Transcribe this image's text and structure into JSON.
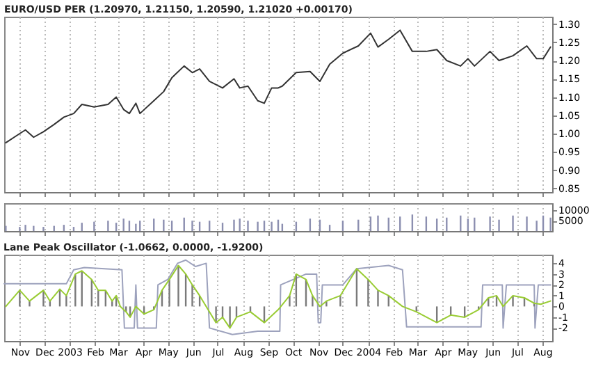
{
  "chart_data": [
    {
      "type": "line",
      "title": "EURO/USD PER (1.20970, 1.21150, 1.20590, 1.21020 +0.00170)",
      "x": [
        "2002-10-15",
        "2002-11-01",
        "2002-11-08",
        "2002-11-18",
        "2002-11-30",
        "2002-12-13",
        "2002-12-25",
        "2003-01-06",
        "2003-01-16",
        "2003-01-31",
        "2003-02-17",
        "2003-02-27",
        "2003-03-08",
        "2003-03-15",
        "2003-03-23",
        "2003-03-28",
        "2003-04-14",
        "2003-04-26",
        "2003-05-06",
        "2003-05-21",
        "2003-05-31",
        "2003-06-09",
        "2003-06-21",
        "2003-07-07",
        "2003-07-21",
        "2003-07-28",
        "2003-08-07",
        "2003-08-19",
        "2003-08-27",
        "2003-09-05",
        "2003-09-13",
        "2003-09-18",
        "2003-10-05",
        "2003-10-22",
        "2003-11-03",
        "2003-11-15",
        "2003-12-01",
        "2003-12-20",
        "2004-01-04",
        "2004-01-13",
        "2004-01-26",
        "2004-02-09",
        "2004-02-24",
        "2004-03-12",
        "2004-03-25",
        "2004-04-06",
        "2004-04-23",
        "2004-05-02",
        "2004-05-10",
        "2004-05-29",
        "2004-06-09",
        "2004-06-26",
        "2004-07-13",
        "2004-07-25",
        "2004-08-02",
        "2004-08-11"
      ],
      "values": [
        0.975,
        1.0,
        1.01,
        0.99,
        1.005,
        1.025,
        1.045,
        1.055,
        1.08,
        1.073,
        1.08,
        1.1,
        1.066,
        1.055,
        1.083,
        1.055,
        1.09,
        1.115,
        1.153,
        1.185,
        1.167,
        1.177,
        1.143,
        1.125,
        1.15,
        1.125,
        1.13,
        1.09,
        1.083,
        1.125,
        1.125,
        1.13,
        1.167,
        1.17,
        1.143,
        1.19,
        1.22,
        1.24,
        1.275,
        1.237,
        1.258,
        1.283,
        1.225,
        1.225,
        1.23,
        1.2,
        1.185,
        1.205,
        1.185,
        1.225,
        1.2,
        1.213,
        1.24,
        1.205,
        1.205,
        1.237
      ],
      "color": "#333333",
      "xlim": [
        "2002-10-13",
        "2004-08-13"
      ],
      "xticks": [
        {
          "value": "2002-11-01",
          "label": null
        },
        {
          "value": "2002-12-01",
          "label": null
        },
        {
          "value": "2003-01-01",
          "label": null
        },
        {
          "value": "2003-02-01",
          "label": null
        },
        {
          "value": "2003-03-01",
          "label": null
        },
        {
          "value": "2003-04-01",
          "label": null
        },
        {
          "value": "2003-05-01",
          "label": null
        },
        {
          "value": "2003-06-01",
          "label": null
        },
        {
          "value": "2003-07-01",
          "label": null
        },
        {
          "value": "2003-08-01",
          "label": null
        },
        {
          "value": "2003-09-01",
          "label": null
        },
        {
          "value": "2003-10-01",
          "label": null
        },
        {
          "value": "2003-11-01",
          "label": null
        },
        {
          "value": "2003-12-01",
          "label": null
        },
        {
          "value": "2004-01-01",
          "label": null
        },
        {
          "value": "2004-02-01",
          "label": null
        },
        {
          "value": "2004-03-01",
          "label": null
        },
        {
          "value": "2004-04-01",
          "label": null
        },
        {
          "value": "2004-05-01",
          "label": null
        },
        {
          "value": "2004-06-01",
          "label": null
        },
        {
          "value": "2004-07-01",
          "label": null
        },
        {
          "value": "2004-08-01",
          "label": null
        }
      ],
      "ylim": [
        0.84,
        1.32
      ],
      "yticks": [
        {
          "value": 0.85,
          "label": "0.85"
        },
        {
          "value": 0.9,
          "label": "0.90"
        },
        {
          "value": 0.95,
          "label": "0.95"
        },
        {
          "value": 1.0,
          "label": "1.00"
        },
        {
          "value": 1.05,
          "label": "1.05"
        },
        {
          "value": 1.1,
          "label": "1.10"
        },
        {
          "value": 1.15,
          "label": "1.15"
        },
        {
          "value": 1.2,
          "label": "1.20"
        },
        {
          "value": 1.25,
          "label": "1.25"
        },
        {
          "value": 1.3,
          "label": "1.30"
        }
      ],
      "grid": "x",
      "tick_labels": "y"
    },
    {
      "type": "bar",
      "x": [
        "2002-10-15",
        "2002-11-01",
        "2002-11-08",
        "2002-11-18",
        "2002-11-30",
        "2002-12-13",
        "2002-12-25",
        "2003-01-06",
        "2003-01-16",
        "2003-01-31",
        "2003-02-17",
        "2003-02-27",
        "2003-03-08",
        "2003-03-15",
        "2003-03-23",
        "2003-03-28",
        "2003-04-14",
        "2003-04-26",
        "2003-05-06",
        "2003-05-21",
        "2003-05-31",
        "2003-06-09",
        "2003-06-21",
        "2003-07-07",
        "2003-07-21",
        "2003-07-28",
        "2003-08-07",
        "2003-08-19",
        "2003-08-27",
        "2003-09-05",
        "2003-09-13",
        "2003-09-18",
        "2003-10-05",
        "2003-10-22",
        "2003-11-03",
        "2003-11-15",
        "2003-12-01",
        "2003-12-20",
        "2004-01-04",
        "2004-01-13",
        "2004-01-26",
        "2004-02-09",
        "2004-02-24",
        "2004-03-12",
        "2004-03-25",
        "2004-04-06",
        "2004-04-23",
        "2004-05-02",
        "2004-05-10",
        "2004-05-29",
        "2004-06-09",
        "2004-06-26",
        "2004-07-13",
        "2004-07-25",
        "2004-08-02",
        "2004-08-11"
      ],
      "values": [
        2500,
        2000,
        3000,
        2500,
        2000,
        2500,
        3000,
        2000,
        4000,
        4500,
        5000,
        4000,
        6000,
        5000,
        3500,
        5000,
        6000,
        5500,
        5000,
        6500,
        5000,
        4500,
        5000,
        4000,
        5500,
        6000,
        5000,
        4500,
        5000,
        4500,
        5500,
        3500,
        4500,
        6000,
        5500,
        3000,
        5000,
        5500,
        7000,
        7500,
        6500,
        7000,
        8000,
        7000,
        6000,
        6500,
        7500,
        6000,
        6500,
        7000,
        5500,
        7500,
        7000,
        5000,
        7500,
        6500
      ],
      "color": "#8c8fb0",
      "xlim": [
        "2002-10-13",
        "2004-08-13"
      ],
      "xticks": [
        {
          "value": "2002-11-01",
          "label": null
        },
        {
          "value": "2002-12-01",
          "label": null
        },
        {
          "value": "2003-01-01",
          "label": null
        },
        {
          "value": "2003-02-01",
          "label": null
        },
        {
          "value": "2003-03-01",
          "label": null
        },
        {
          "value": "2003-04-01",
          "label": null
        },
        {
          "value": "2003-05-01",
          "label": null
        },
        {
          "value": "2003-06-01",
          "label": null
        },
        {
          "value": "2003-07-01",
          "label": null
        },
        {
          "value": "2003-08-01",
          "label": null
        },
        {
          "value": "2003-09-01",
          "label": null
        },
        {
          "value": "2003-10-01",
          "label": null
        },
        {
          "value": "2003-11-01",
          "label": null
        },
        {
          "value": "2003-12-01",
          "label": null
        },
        {
          "value": "2004-01-01",
          "label": null
        },
        {
          "value": "2004-02-01",
          "label": null
        },
        {
          "value": "2004-03-01",
          "label": null
        },
        {
          "value": "2004-04-01",
          "label": null
        },
        {
          "value": "2004-05-01",
          "label": null
        },
        {
          "value": "2004-06-01",
          "label": null
        },
        {
          "value": "2004-07-01",
          "label": null
        },
        {
          "value": "2004-08-01",
          "label": null
        }
      ],
      "ylim": [
        0,
        13500
      ],
      "yticks": [
        5000,
        10000
      ],
      "grid": "x",
      "tick_labels": "y"
    },
    {
      "type": "line",
      "title": "Lane Peak Oscillator (-1.0662, 0.0000, -1.9200)",
      "series": [
        {
          "type": "line",
          "color": "#9da2bd",
          "x": [
            "2002-10-13",
            "2002-12-28",
            "2003-01-06",
            "2003-01-19",
            "2003-03-06",
            "2003-03-09",
            "2003-03-21",
            "2003-03-23",
            "2003-03-25",
            "2003-04-17",
            "2003-04-19",
            "2003-05-01",
            "2003-05-13",
            "2003-05-23",
            "2003-06-04",
            "2003-06-17",
            "2003-06-21",
            "2003-07-19",
            "2003-08-19",
            "2003-09-15",
            "2003-09-16",
            "2003-10-17",
            "2003-10-30",
            "2003-11-01",
            "2003-11-04",
            "2003-11-06",
            "2003-12-01",
            "2003-12-18",
            "2004-01-26",
            "2004-02-12",
            "2004-02-17",
            "2004-05-18",
            "2004-05-20",
            "2004-06-13",
            "2004-06-14",
            "2004-06-18",
            "2004-07-22",
            "2004-07-23",
            "2004-07-27",
            "2004-08-11"
          ],
          "values": [
            2.1,
            2.1,
            3.4,
            3.6,
            3.4,
            -2,
            -2,
            2,
            -2,
            -2,
            2,
            2.5,
            4,
            4.3,
            3.7,
            4,
            -2,
            -2.6,
            -2.3,
            -2.3,
            2,
            3,
            3,
            -1.5,
            -1.5,
            2,
            2,
            3.5,
            3.8,
            3.4,
            -1.9,
            -1.9,
            2,
            2,
            -2,
            2,
            2,
            -2,
            2,
            2
          ]
        },
        {
          "type": "bar",
          "color": "#7a7a7a",
          "x": [
            "2002-11-01",
            "2002-11-13",
            "2002-11-30",
            "2002-12-08",
            "2002-12-20",
            "2002-12-28",
            "2003-01-08",
            "2003-01-16",
            "2003-01-28",
            "2003-02-05",
            "2003-02-14",
            "2003-02-22",
            "2003-02-27",
            "2003-03-11",
            "2003-03-16",
            "2003-04-02",
            "2003-04-14",
            "2003-04-24",
            "2003-05-03",
            "2003-05-14",
            "2003-05-23",
            "2003-05-31",
            "2003-06-09",
            "2003-06-29",
            "2003-07-07",
            "2003-07-16",
            "2003-07-24",
            "2003-08-10",
            "2003-08-27",
            "2003-09-27",
            "2003-10-05",
            "2003-10-17",
            "2003-10-25",
            "2003-11-11",
            "2003-11-28",
            "2003-12-18",
            "2004-01-01",
            "2004-01-13",
            "2004-01-26",
            "2004-02-29",
            "2004-03-25",
            "2004-04-11",
            "2004-04-28",
            "2004-05-15",
            "2004-05-27",
            "2004-06-06",
            "2004-06-26",
            "2004-07-10",
            "2004-07-22"
          ],
          "values": [
            1.5,
            0.5,
            1.5,
            0.5,
            1.6,
            1,
            3,
            3.3,
            2.5,
            1.5,
            1.5,
            0.5,
            1,
            -0.5,
            -1,
            -0.7,
            -0.3,
            1.5,
            2.5,
            3.8,
            3,
            2,
            1,
            -1.5,
            -1,
            -2,
            -1,
            -0.5,
            -1.5,
            1,
            3,
            2.5,
            1,
            0.5,
            1,
            3.5,
            2.5,
            1.5,
            1,
            -0.5,
            -1.5,
            -0.8,
            -1,
            -0.3,
            0.8,
            1,
            1,
            0.8,
            0.3
          ]
        },
        {
          "type": "line",
          "color": "#99cc33",
          "x": [
            "2002-10-15",
            "2002-11-01",
            "2002-11-13",
            "2002-11-30",
            "2002-12-08",
            "2002-12-20",
            "2002-12-28",
            "2003-01-08",
            "2003-01-16",
            "2003-01-28",
            "2003-02-05",
            "2003-02-14",
            "2003-02-22",
            "2003-02-27",
            "2003-03-04",
            "2003-03-11",
            "2003-03-16",
            "2003-03-23",
            "2003-04-02",
            "2003-04-14",
            "2003-04-24",
            "2003-05-03",
            "2003-05-14",
            "2003-05-23",
            "2003-05-31",
            "2003-06-09",
            "2003-06-17",
            "2003-06-29",
            "2003-07-07",
            "2003-07-16",
            "2003-07-24",
            "2003-08-10",
            "2003-08-27",
            "2003-09-13",
            "2003-09-27",
            "2003-10-05",
            "2003-10-17",
            "2003-10-25",
            "2003-11-03",
            "2003-11-11",
            "2003-11-28",
            "2003-12-18",
            "2004-01-01",
            "2004-01-13",
            "2004-01-26",
            "2004-02-12",
            "2004-02-29",
            "2004-03-25",
            "2004-04-11",
            "2004-04-28",
            "2004-05-15",
            "2004-05-27",
            "2004-06-06",
            "2004-06-14",
            "2004-06-26",
            "2004-07-10",
            "2004-07-22",
            "2004-07-30",
            "2004-08-11"
          ],
          "values": [
            0,
            1.5,
            0.5,
            1.5,
            0.5,
            1.6,
            1,
            3,
            3.3,
            2.5,
            1.5,
            1.5,
            0.5,
            1,
            0,
            -0.5,
            -1,
            0,
            -0.7,
            -0.3,
            1.5,
            2.5,
            3.8,
            3,
            2,
            1,
            0,
            -1.5,
            -1,
            -2,
            -1,
            -0.5,
            -1.5,
            -0.3,
            1,
            3,
            2.5,
            1,
            0,
            0.5,
            1,
            3.5,
            2.5,
            1.5,
            1,
            0,
            -0.5,
            -1.5,
            -0.8,
            -1,
            -0.3,
            0.8,
            1,
            0,
            1,
            0.8,
            0.3,
            0.2,
            0.5
          ]
        }
      ],
      "xlim": [
        "2002-10-13",
        "2004-08-13"
      ],
      "xticks": [
        {
          "value": "2002-11-01",
          "label": "Nov"
        },
        {
          "value": "2002-12-01",
          "label": "Dec"
        },
        {
          "value": "2003-01-01",
          "label": "2003"
        },
        {
          "value": "2003-02-01",
          "label": "Feb"
        },
        {
          "value": "2003-03-01",
          "label": "Mar"
        },
        {
          "value": "2003-04-01",
          "label": "Apr"
        },
        {
          "value": "2003-05-01",
          "label": "May"
        },
        {
          "value": "2003-06-01",
          "label": "Jun"
        },
        {
          "value": "2003-07-01",
          "label": "Jul"
        },
        {
          "value": "2003-08-01",
          "label": "Aug"
        },
        {
          "value": "2003-09-01",
          "label": "Sep"
        },
        {
          "value": "2003-10-01",
          "label": "Oct"
        },
        {
          "value": "2003-11-01",
          "label": "Nov"
        },
        {
          "value": "2003-12-01",
          "label": "Dec"
        },
        {
          "value": "2004-01-01",
          "label": "2004"
        },
        {
          "value": "2004-02-01",
          "label": "Feb"
        },
        {
          "value": "2004-03-01",
          "label": "Mar"
        },
        {
          "value": "2004-04-01",
          "label": "Apr"
        },
        {
          "value": "2004-05-01",
          "label": "May"
        },
        {
          "value": "2004-06-01",
          "label": "Jun"
        },
        {
          "value": "2004-07-01",
          "label": "Jul"
        },
        {
          "value": "2004-08-01",
          "label": "Aug"
        }
      ],
      "ylim": [
        -3.2,
        4.8
      ],
      "yticks": [
        -2,
        -1,
        0,
        1,
        2,
        3,
        4
      ],
      "grid": "x"
    }
  ]
}
